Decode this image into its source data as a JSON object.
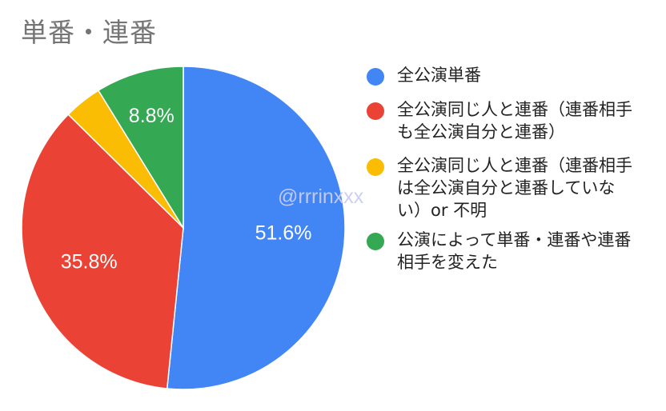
{
  "chart_data": {
    "type": "pie",
    "title": "単番・連番",
    "legend_position": "right",
    "start_angle_deg": 0,
    "direction": "clockwise",
    "slices": [
      {
        "name": "全公演単番",
        "value": 51.6,
        "label": "51.6%",
        "color": "#4285f4"
      },
      {
        "name": "全公演同じ人と連番（連番相手も全公演自分と連番）",
        "value": 35.8,
        "label": "35.8%",
        "color": "#ea4335"
      },
      {
        "name": "全公演同じ人と連番（連番相手は全公演自分と連番していない）or 不明",
        "value": 3.8,
        "label": "",
        "color": "#fbbc04"
      },
      {
        "name": "公演によって単番・連番や連番相手を変えた",
        "value": 8.8,
        "label": "8.8%",
        "color": "#34a853"
      }
    ]
  },
  "watermark": "@rrrinxxx"
}
